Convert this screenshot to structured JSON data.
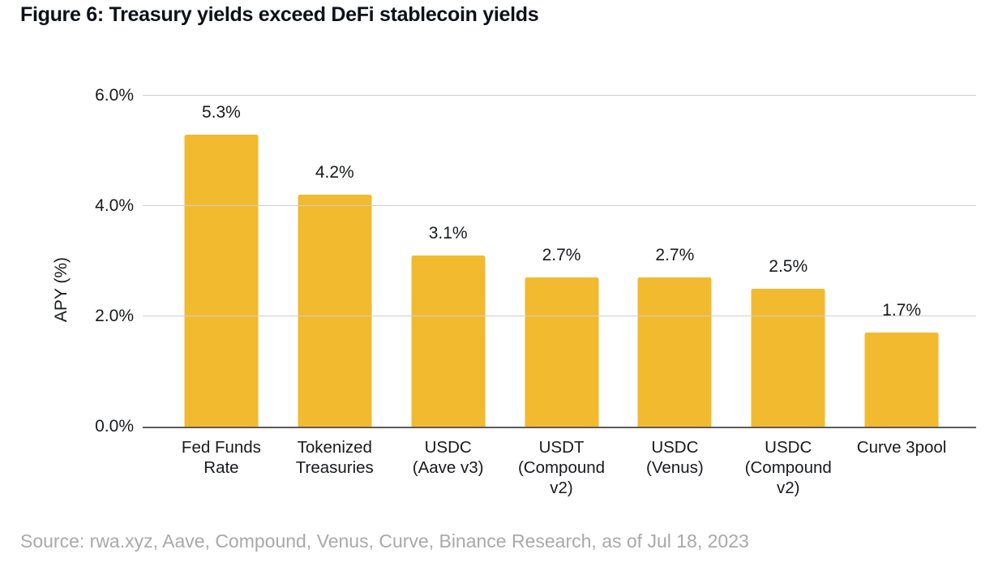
{
  "figure": {
    "title": "Figure 6: Treasury yields exceed DeFi stablecoin yields"
  },
  "source": {
    "text": "Source: rwa.xyz, Aave, Compound, Venus, Curve, Binance Research, as of Jul 18, 2023"
  },
  "chart_data": {
    "type": "bar",
    "title": "Figure 6: Treasury yields exceed DeFi stablecoin yields",
    "categories": [
      "Fed Funds\nRate",
      "Tokenized\nTreasuries",
      "USDC\n(Aave v3)",
      "USDT\n(Compound\nv2)",
      "USDC\n(Venus)",
      "USDC\n(Compound\nv2)",
      "Curve 3pool"
    ],
    "values": [
      5.3,
      4.2,
      3.1,
      2.7,
      2.7,
      2.5,
      1.7
    ],
    "value_labels": [
      "5.3%",
      "4.2%",
      "3.1%",
      "2.7%",
      "2.7%",
      "2.5%",
      "1.7%"
    ],
    "xlabel": "",
    "ylabel": "APY (%)",
    "ylim": [
      0,
      6
    ],
    "yticks": [
      {
        "value": 0,
        "label": "0.0%"
      },
      {
        "value": 2,
        "label": "2.0%"
      },
      {
        "value": 4,
        "label": "4.0%"
      },
      {
        "value": 6,
        "label": "6.0%"
      }
    ],
    "grid": true,
    "legend": false,
    "bar_color": "#F2BA2F",
    "colors": {
      "bar": "#F2BA2F",
      "text": "#17191c",
      "gridline": "#cfcfcf",
      "baseline": "#5c5c5c",
      "source_text": "#a9a9a9"
    }
  }
}
